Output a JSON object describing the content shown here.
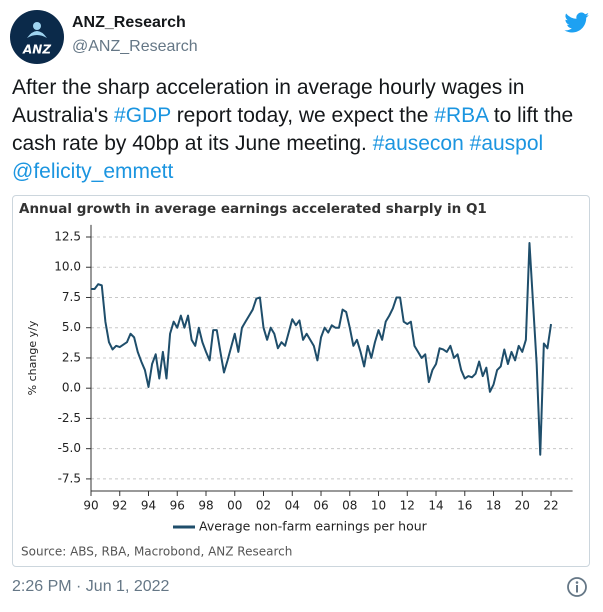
{
  "tweet": {
    "name": "ANZ_Research",
    "handle": "@ANZ_Research",
    "avatar_text": "ANZ",
    "text_parts": [
      "After the sharp acceleration in average hourly wages in Australia's ",
      "#GDP",
      " report today, we expect the ",
      "#RBA",
      " to lift the cash rate by 40bp at its June meeting. ",
      "#ausecon",
      " ",
      "#auspol",
      " ",
      "@felicity_emmett"
    ],
    "timestamp": "2:26 PM · Jun 1, 2022"
  },
  "chart_data": {
    "type": "line",
    "title": "Annual growth in average earnings accelerated sharply in Q1",
    "y_label": "% change y/y",
    "source": "Source: ABS, RBA, Macrobond, ANZ Research",
    "x": [
      1990,
      1990.25,
      1990.5,
      1990.75,
      1991,
      1991.25,
      1991.5,
      1991.75,
      1992,
      1992.5,
      1992.75,
      1993,
      1993.25,
      1993.5,
      1993.75,
      1994,
      1994.25,
      1994.5,
      1994.75,
      1995,
      1995.25,
      1995.5,
      1995.75,
      1996,
      1996.25,
      1996.5,
      1996.75,
      1997,
      1997.25,
      1997.5,
      1997.75,
      1998,
      1998.25,
      1998.5,
      1998.75,
      1999,
      1999.25,
      1999.5,
      2000,
      2000.25,
      2000.5,
      2000.75,
      2001,
      2001.25,
      2001.5,
      2001.75,
      2002,
      2002.25,
      2002.5,
      2002.75,
      2003,
      2003.25,
      2003.5,
      2004,
      2004.25,
      2004.5,
      2004.75,
      2005,
      2005.5,
      2005.75,
      2006,
      2006.25,
      2006.5,
      2006.75,
      2007,
      2007.25,
      2007.5,
      2007.75,
      2008,
      2008.25,
      2008.5,
      2008.75,
      2009,
      2009.25,
      2009.5,
      2009.75,
      2010,
      2010.25,
      2010.5,
      2010.75,
      2011,
      2011.25,
      2011.5,
      2011.75,
      2012,
      2012.25,
      2012.5,
      2012.75,
      2013,
      2013.25,
      2013.5,
      2013.75,
      2014,
      2014.25,
      2014.5,
      2014.75,
      2015,
      2015.25,
      2015.5,
      2015.75,
      2016,
      2016.25,
      2016.5,
      2016.75,
      2017,
      2017.25,
      2017.5,
      2017.75,
      2018,
      2018.25,
      2018.5,
      2018.75,
      2019,
      2019.25,
      2019.5,
      2019.75,
      2020,
      2020.25,
      2020.5,
      2020.75,
      2021,
      2021.25,
      2021.5,
      2021.75,
      2022
    ],
    "series": [
      {
        "name": "Average non-farm earnings per hour",
        "color": "#1f4e6b",
        "values": [
          8.2,
          8.2,
          8.6,
          8.5,
          5.5,
          3.8,
          3.2,
          3.5,
          3.4,
          3.8,
          4.5,
          4.2,
          3.0,
          2.2,
          1.5,
          0.1,
          2.0,
          2.8,
          0.8,
          3.0,
          0.8,
          4.5,
          5.5,
          5.0,
          6.0,
          5.0,
          6.0,
          4.0,
          3.5,
          5.0,
          3.8,
          3.0,
          2.3,
          4.8,
          4.8,
          3.0,
          1.3,
          2.3,
          4.5,
          3.0,
          5.0,
          5.5,
          6.0,
          6.5,
          7.4,
          7.5,
          5.0,
          4.0,
          5.0,
          4.5,
          3.3,
          3.8,
          3.5,
          5.7,
          5.2,
          5.6,
          4.0,
          4.5,
          3.5,
          2.3,
          4.2,
          5.0,
          4.6,
          5.2,
          5.0,
          5.0,
          6.5,
          6.3,
          5.0,
          3.5,
          4.0,
          3.0,
          1.8,
          3.5,
          2.5,
          3.8,
          4.8,
          4.0,
          5.5,
          6.0,
          6.6,
          7.5,
          7.5,
          5.5,
          5.3,
          5.5,
          3.5,
          3.0,
          2.5,
          2.8,
          0.5,
          1.5,
          2.0,
          3.3,
          3.2,
          3.0,
          3.5,
          2.5,
          2.8,
          1.5,
          0.8,
          1.0,
          0.9,
          1.2,
          2.2,
          1.0,
          1.7,
          -0.3,
          0.3,
          1.5,
          1.8,
          3.2,
          2.0,
          3.0,
          2.3,
          3.5,
          3.0,
          4.0,
          12.0,
          7.0,
          2.0,
          -5.5,
          3.7,
          3.3,
          5.3
        ]
      }
    ],
    "xlim": [
      1990,
      2023.5
    ],
    "ylim": [
      -8.5,
      13.5
    ],
    "xticks": [
      {
        "value": 1990,
        "label": "90"
      },
      {
        "value": 1992,
        "label": "92"
      },
      {
        "value": 1994,
        "label": "94"
      },
      {
        "value": 1996,
        "label": "96"
      },
      {
        "value": 1998,
        "label": "98"
      },
      {
        "value": 2000,
        "label": "00"
      },
      {
        "value": 2002,
        "label": "02"
      },
      {
        "value": 2004,
        "label": "04"
      },
      {
        "value": 2006,
        "label": "06"
      },
      {
        "value": 2008,
        "label": "08"
      },
      {
        "value": 2010,
        "label": "10"
      },
      {
        "value": 2012,
        "label": "12"
      },
      {
        "value": 2014,
        "label": "14"
      },
      {
        "value": 2016,
        "label": "16"
      },
      {
        "value": 2018,
        "label": "18"
      },
      {
        "value": 2020,
        "label": "20"
      },
      {
        "value": 2022,
        "label": "22"
      }
    ],
    "yticks": [
      12.5,
      {
        "value": 10,
        "label": "10.0"
      },
      7.5,
      {
        "value": 5,
        "label": "5.0"
      },
      2.5,
      {
        "value": 0,
        "label": "0.0"
      },
      -2.5,
      {
        "value": -5,
        "label": "-5.0"
      },
      -7.5
    ],
    "grid": true
  }
}
